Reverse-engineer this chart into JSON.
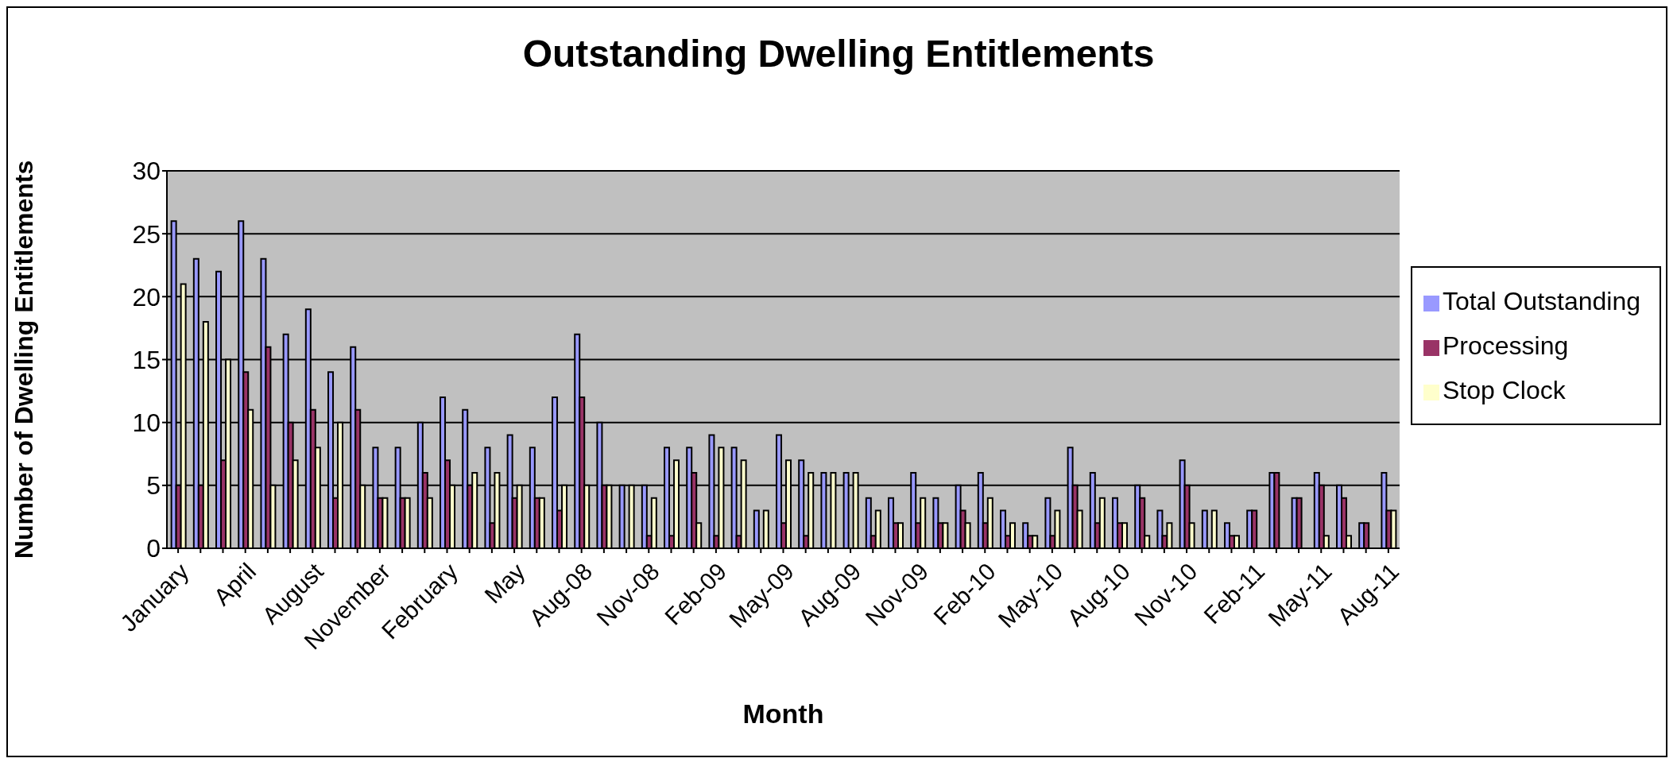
{
  "chart_data": {
    "type": "bar",
    "title": "Outstanding Dwelling Entitlements",
    "xlabel": "Month",
    "ylabel": "Number of Dwelling Entitlements",
    "categories": [
      "January",
      null,
      null,
      "April",
      null,
      null,
      "August",
      null,
      null,
      "November",
      null,
      null,
      "February",
      null,
      null,
      "May",
      null,
      null,
      "Aug-08",
      null,
      null,
      "Nov-08",
      null,
      null,
      "Feb-09",
      null,
      null,
      "May-09",
      null,
      null,
      "Aug-09",
      null,
      null,
      "Nov-09",
      null,
      null,
      "Feb-10",
      null,
      null,
      "May-10",
      null,
      null,
      "Aug-10",
      null,
      null,
      "Nov-10",
      null,
      null,
      "Feb-11",
      null,
      null,
      "May-11",
      null,
      null,
      "Aug-11"
    ],
    "series": [
      {
        "name": "Total Outstanding",
        "color": "#9999ff",
        "values": [
          26,
          23,
          22,
          26,
          23,
          17,
          19,
          14,
          16,
          8,
          8,
          10,
          12,
          11,
          8,
          9,
          8,
          12,
          17,
          10,
          5,
          5,
          8,
          8,
          9,
          8,
          3,
          9,
          7,
          6,
          6,
          4,
          4,
          6,
          4,
          5,
          6,
          3,
          2,
          4,
          8,
          6,
          4,
          5,
          3,
          7,
          3,
          2,
          3,
          6,
          4,
          6,
          5,
          2,
          6
        ]
      },
      {
        "name": "Processing",
        "color": "#993366",
        "values": [
          5,
          5,
          7,
          14,
          16,
          10,
          11,
          4,
          11,
          4,
          4,
          6,
          7,
          5,
          2,
          4,
          4,
          3,
          12,
          5,
          0,
          1,
          1,
          6,
          1,
          1,
          0,
          2,
          1,
          0,
          0,
          1,
          2,
          2,
          2,
          3,
          2,
          1,
          1,
          1,
          5,
          2,
          2,
          4,
          1,
          5,
          0,
          1,
          3,
          6,
          4,
          5,
          4,
          2,
          3
        ]
      },
      {
        "name": "Stop Clock",
        "color": "#ffffcc",
        "values": [
          21,
          18,
          15,
          11,
          5,
          7,
          8,
          10,
          5,
          4,
          4,
          4,
          5,
          6,
          6,
          5,
          4,
          5,
          5,
          5,
          5,
          4,
          7,
          2,
          8,
          7,
          3,
          7,
          6,
          6,
          6,
          3,
          2,
          4,
          2,
          2,
          4,
          2,
          1,
          3,
          3,
          4,
          2,
          1,
          2,
          2,
          3,
          1,
          0,
          0,
          0,
          1,
          1,
          0,
          3
        ]
      }
    ],
    "ylim": [
      0,
      30
    ],
    "yticks": [
      0,
      5,
      10,
      15,
      20,
      25,
      30
    ],
    "grid": "y",
    "legend": "right"
  }
}
